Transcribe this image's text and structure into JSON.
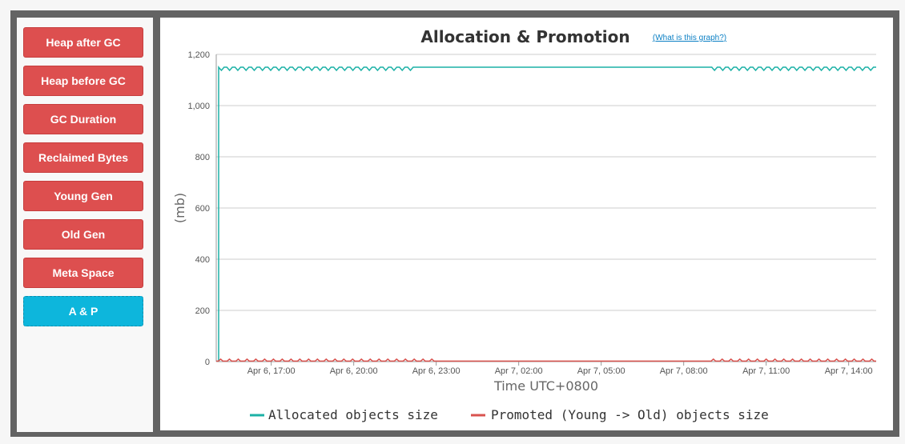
{
  "sidebar": {
    "items": [
      {
        "label": "Heap after GC",
        "active": false
      },
      {
        "label": "Heap before GC",
        "active": false
      },
      {
        "label": "GC Duration",
        "active": false
      },
      {
        "label": "Reclaimed Bytes",
        "active": false
      },
      {
        "label": "Young Gen",
        "active": false
      },
      {
        "label": "Old Gen",
        "active": false
      },
      {
        "label": "Meta Space",
        "active": false
      },
      {
        "label": "A & P",
        "active": true
      }
    ],
    "colors": {
      "button": "#dd4f4f",
      "active": "#0db6dc"
    }
  },
  "chart_data": {
    "type": "line",
    "title": "Allocation & Promotion",
    "help_link": "(What is this graph?)",
    "xlabel": "Time UTC+0800",
    "ylabel": "(mb)",
    "ylim": [
      0,
      1200
    ],
    "yticks": [
      0,
      200,
      400,
      600,
      800,
      1000,
      1200
    ],
    "ytick_labels": [
      "0",
      "200",
      "400",
      "600",
      "800",
      "1,000",
      "1,200"
    ],
    "xtick_labels": [
      "Apr 6, 17:00",
      "Apr 6, 20:00",
      "Apr 6, 23:00",
      "Apr 7, 02:00",
      "Apr 7, 05:00",
      "Apr 7, 08:00",
      "Apr 7, 11:00",
      "Apr 7, 14:00"
    ],
    "x_range_hours": [
      "Apr 6, 15:00",
      "Apr 7, 15:00"
    ],
    "grid": true,
    "legend_position": "bottom",
    "series": [
      {
        "name": "Allocated objects size",
        "color": "#1cb1a6",
        "x": [
          "Apr 6, 15:00",
          "Apr 6, 15:05",
          "Apr 7, 15:00"
        ],
        "values": [
          0,
          1150,
          1150
        ]
      },
      {
        "name": "Promoted (Young -> Old) objects size",
        "color": "#d9534f",
        "x": [
          "Apr 6, 15:00",
          "Apr 7, 15:00"
        ],
        "values": [
          2,
          2
        ]
      }
    ]
  }
}
